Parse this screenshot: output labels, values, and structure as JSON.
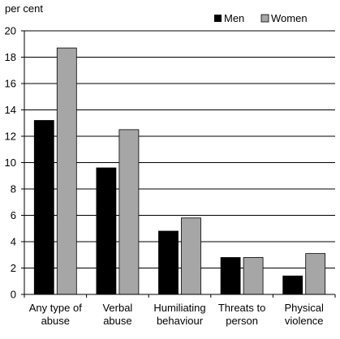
{
  "chart_data": {
    "type": "bar",
    "unit_label": "per cent",
    "categories": [
      [
        "Any type of",
        "abuse"
      ],
      [
        "Verbal",
        "abuse"
      ],
      [
        "Humiliating",
        "behaviour"
      ],
      [
        "Threats to",
        "person"
      ],
      [
        "Physical",
        "violence"
      ]
    ],
    "series": [
      {
        "name": "Men",
        "color": "#000000",
        "values": [
          13.2,
          9.6,
          4.8,
          2.8,
          1.4
        ]
      },
      {
        "name": "Women",
        "color": "#a6a6a6",
        "values": [
          18.7,
          12.5,
          5.8,
          2.8,
          3.1
        ]
      }
    ],
    "ylim": [
      0,
      20
    ],
    "yticks": [
      0,
      2,
      4,
      6,
      8,
      10,
      12,
      14,
      16,
      18,
      20
    ],
    "grid": true,
    "legend_position": "top-right"
  }
}
